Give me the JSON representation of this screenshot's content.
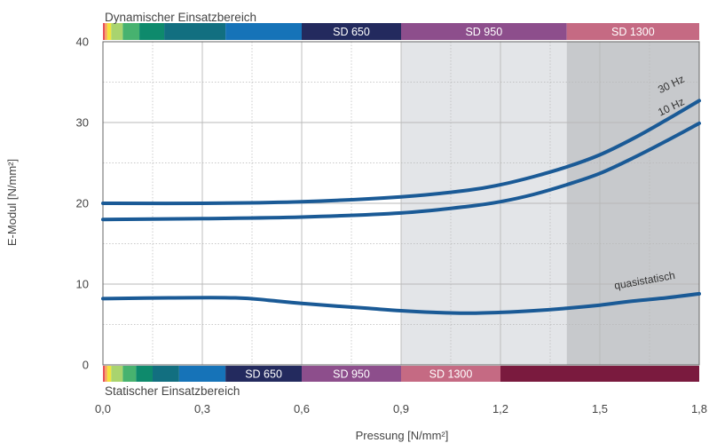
{
  "chart_data": {
    "type": "line",
    "xlabel": "Pressung [N/mm²]",
    "ylabel": "E-Modul [N/mm²]",
    "xlim": [
      0.0,
      1.8
    ],
    "ylim": [
      0,
      40
    ],
    "x_ticks": [
      "0,0",
      "0,3",
      "0,6",
      "0,9",
      "1,2",
      "1,5",
      "1,8"
    ],
    "y_ticks": [
      "0",
      "10",
      "20",
      "30",
      "40"
    ],
    "grid": true,
    "shaded_regions": [
      {
        "from": 0.9,
        "to": 1.4,
        "color": "#e3e5e8"
      },
      {
        "from": 1.4,
        "to": 1.8,
        "color": "#c7c9cc"
      }
    ],
    "series": [
      {
        "name": "30 Hz",
        "x": [
          0.0,
          0.3,
          0.6,
          0.9,
          1.1,
          1.2,
          1.3,
          1.4,
          1.5,
          1.6,
          1.7,
          1.8
        ],
        "y": [
          20.0,
          20.0,
          20.2,
          20.8,
          21.6,
          22.3,
          23.3,
          24.5,
          26.0,
          28.0,
          30.3,
          32.7
        ]
      },
      {
        "name": "10 Hz",
        "x": [
          0.0,
          0.3,
          0.6,
          0.9,
          1.1,
          1.2,
          1.3,
          1.4,
          1.5,
          1.6,
          1.7,
          1.8
        ],
        "y": [
          18.0,
          18.1,
          18.3,
          18.8,
          19.6,
          20.2,
          21.1,
          22.3,
          23.7,
          25.6,
          27.7,
          29.9
        ]
      },
      {
        "name": "quasistatisch",
        "x": [
          0.0,
          0.2,
          0.4,
          0.5,
          0.6,
          0.8,
          0.9,
          1.0,
          1.1,
          1.2,
          1.3,
          1.4,
          1.5,
          1.6,
          1.7,
          1.8
        ],
        "y": [
          8.2,
          8.3,
          8.3,
          8.0,
          7.6,
          7.0,
          6.7,
          6.5,
          6.4,
          6.5,
          6.7,
          7.0,
          7.4,
          7.9,
          8.3,
          8.8
        ]
      }
    ],
    "top_bar": {
      "title": "Dynamischer Einsatzbereich",
      "segments": [
        {
          "from": 0.0,
          "to": 0.006,
          "color": "#e8505b",
          "label": ""
        },
        {
          "from": 0.006,
          "to": 0.013,
          "color": "#f7a35c",
          "label": ""
        },
        {
          "from": 0.013,
          "to": 0.025,
          "color": "#f3e33c",
          "label": ""
        },
        {
          "from": 0.025,
          "to": 0.06,
          "color": "#a9d46e",
          "label": ""
        },
        {
          "from": 0.06,
          "to": 0.11,
          "color": "#47b26f",
          "label": ""
        },
        {
          "from": 0.11,
          "to": 0.185,
          "color": "#0e8a6c",
          "label": ""
        },
        {
          "from": 0.185,
          "to": 0.37,
          "color": "#126f80",
          "label": ""
        },
        {
          "from": 0.37,
          "to": 0.6,
          "color": "#1673b8",
          "label": ""
        },
        {
          "from": 0.6,
          "to": 0.9,
          "color": "#232a5e",
          "label": "SD 650"
        },
        {
          "from": 0.9,
          "to": 1.4,
          "color": "#8d4e8c",
          "label": "SD 950"
        },
        {
          "from": 1.4,
          "to": 1.8,
          "color": "#c56a83",
          "label": "SD 1300"
        }
      ]
    },
    "bottom_bar": {
      "title": "Statischer Einsatzbereich",
      "segments": [
        {
          "from": 0.0,
          "to": 0.006,
          "color": "#e8505b",
          "label": ""
        },
        {
          "from": 0.006,
          "to": 0.013,
          "color": "#f7a35c",
          "label": ""
        },
        {
          "from": 0.013,
          "to": 0.025,
          "color": "#f3e33c",
          "label": ""
        },
        {
          "from": 0.025,
          "to": 0.06,
          "color": "#a9d46e",
          "label": ""
        },
        {
          "from": 0.06,
          "to": 0.1,
          "color": "#47b26f",
          "label": ""
        },
        {
          "from": 0.1,
          "to": 0.15,
          "color": "#0e8a6c",
          "label": ""
        },
        {
          "from": 0.15,
          "to": 0.23,
          "color": "#126f80",
          "label": ""
        },
        {
          "from": 0.23,
          "to": 0.37,
          "color": "#1673b8",
          "label": ""
        },
        {
          "from": 0.37,
          "to": 0.6,
          "color": "#232a5e",
          "label": "SD 650"
        },
        {
          "from": 0.6,
          "to": 0.9,
          "color": "#8d4e8c",
          "label": "SD 950"
        },
        {
          "from": 0.9,
          "to": 1.2,
          "color": "#c56a83",
          "label": "SD 1300"
        },
        {
          "from": 1.2,
          "to": 1.8,
          "color": "#7a1a3e",
          "label": ""
        }
      ]
    },
    "colors": {
      "line": "#1a5a96",
      "grid": "#b8b8b8",
      "frame": "#666666",
      "bar_text": "#ffffff"
    }
  }
}
